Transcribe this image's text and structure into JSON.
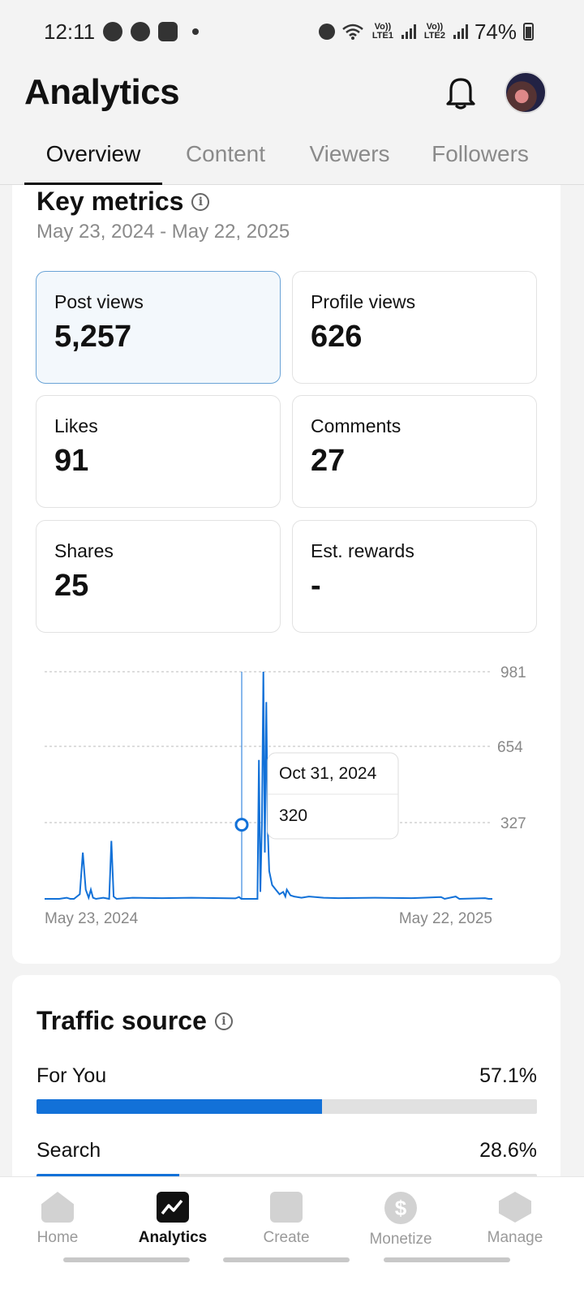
{
  "status_bar": {
    "time": "12:11",
    "lte1": "Vo)) LTE1",
    "lte2": "Vo)) LTE2",
    "battery": "74%"
  },
  "header": {
    "title": "Analytics"
  },
  "tabs": [
    {
      "label": "Overview",
      "active": true
    },
    {
      "label": "Content"
    },
    {
      "label": "Viewers"
    },
    {
      "label": "Followers"
    }
  ],
  "key_metrics": {
    "title": "Key metrics",
    "date_range": "May 23, 2024 - May 22, 2025",
    "metrics": [
      {
        "label": "Post views",
        "value": "5,257",
        "selected": true
      },
      {
        "label": "Profile views",
        "value": "626"
      },
      {
        "label": "Likes",
        "value": "91"
      },
      {
        "label": "Comments",
        "value": "27"
      },
      {
        "label": "Shares",
        "value": "25"
      },
      {
        "label": "Est. rewards",
        "value": "-"
      }
    ]
  },
  "chart_data": {
    "type": "line",
    "series_color": "#1271d8",
    "y_ticks": [
      "981",
      "654",
      "327"
    ],
    "ylim": [
      0,
      981
    ],
    "x_start_label": "May 23, 2024",
    "x_end_label": "May 22, 2025",
    "tooltip": {
      "date": "Oct 31, 2024",
      "value": "320"
    },
    "points": [
      [
        0,
        0
      ],
      [
        20,
        0
      ],
      [
        30,
        5
      ],
      [
        35,
        0
      ],
      [
        40,
        0
      ],
      [
        48,
        20
      ],
      [
        52,
        200
      ],
      [
        56,
        40
      ],
      [
        60,
        5
      ],
      [
        63,
        40
      ],
      [
        66,
        5
      ],
      [
        70,
        0
      ],
      [
        80,
        5
      ],
      [
        88,
        0
      ],
      [
        91,
        250
      ],
      [
        94,
        10
      ],
      [
        98,
        0
      ],
      [
        120,
        5
      ],
      [
        160,
        3
      ],
      [
        200,
        5
      ],
      [
        260,
        2
      ],
      [
        265,
        8
      ],
      [
        268,
        0
      ],
      [
        290,
        0
      ],
      [
        292,
        600
      ],
      [
        294,
        30
      ],
      [
        296,
        320
      ],
      [
        298,
        981
      ],
      [
        300,
        200
      ],
      [
        302,
        850
      ],
      [
        304,
        300
      ],
      [
        306,
        120
      ],
      [
        310,
        60
      ],
      [
        315,
        40
      ],
      [
        320,
        20
      ],
      [
        325,
        30
      ],
      [
        328,
        10
      ],
      [
        330,
        40
      ],
      [
        335,
        15
      ],
      [
        340,
        10
      ],
      [
        350,
        5
      ],
      [
        360,
        10
      ],
      [
        380,
        5
      ],
      [
        400,
        3
      ],
      [
        450,
        5
      ],
      [
        500,
        3
      ],
      [
        540,
        8
      ],
      [
        545,
        0
      ],
      [
        560,
        10
      ],
      [
        565,
        0
      ],
      [
        600,
        3
      ],
      [
        605,
        0
      ],
      [
        610,
        0
      ]
    ],
    "x_max": 610
  },
  "traffic_source": {
    "title": "Traffic source",
    "rows": [
      {
        "label": "For You",
        "percent": "57.1%",
        "fraction": 0.571
      },
      {
        "label": "Search",
        "percent": "28.6%",
        "fraction": 0.286
      }
    ]
  },
  "bottom_nav": [
    {
      "label": "Home",
      "icon": "home-icon"
    },
    {
      "label": "Analytics",
      "icon": "analytics-icon",
      "active": true
    },
    {
      "label": "Create",
      "icon": "create-icon"
    },
    {
      "label": "Monetize",
      "icon": "dollar-icon"
    },
    {
      "label": "Manage",
      "icon": "layers-icon"
    }
  ]
}
